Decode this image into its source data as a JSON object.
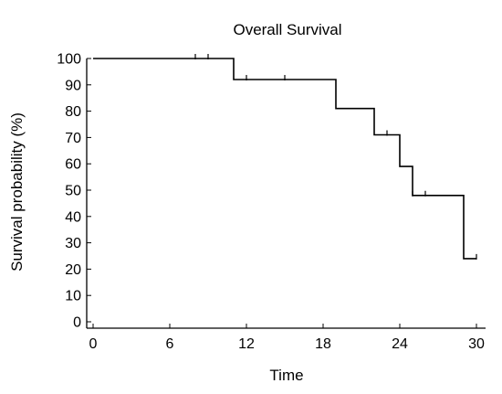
{
  "chart_data": {
    "type": "line",
    "title": "Overall Survival",
    "xlabel": "Time",
    "ylabel": "Survival probability (%)",
    "xlim": [
      0,
      30
    ],
    "ylim": [
      0,
      100
    ],
    "xticks": [
      0,
      6,
      12,
      18,
      24,
      30
    ],
    "yticks": [
      0,
      10,
      20,
      30,
      40,
      50,
      60,
      70,
      80,
      90,
      100
    ],
    "grid": false,
    "series": [
      {
        "style": "step",
        "color": "#000000",
        "x": [
          0,
          11,
          11,
          19,
          19,
          22,
          22,
          24,
          24,
          25,
          25,
          29,
          29,
          30
        ],
        "y": [
          100,
          100,
          92,
          92,
          81,
          81,
          71,
          71,
          59,
          59,
          48,
          48,
          24,
          24
        ],
        "censored": [
          {
            "x": 8,
            "y": 100
          },
          {
            "x": 9,
            "y": 100
          },
          {
            "x": 12,
            "y": 92
          },
          {
            "x": 15,
            "y": 92
          },
          {
            "x": 23,
            "y": 71
          },
          {
            "x": 25,
            "y": 48
          },
          {
            "x": 26,
            "y": 48
          },
          {
            "x": 30,
            "y": 24
          }
        ]
      }
    ]
  }
}
